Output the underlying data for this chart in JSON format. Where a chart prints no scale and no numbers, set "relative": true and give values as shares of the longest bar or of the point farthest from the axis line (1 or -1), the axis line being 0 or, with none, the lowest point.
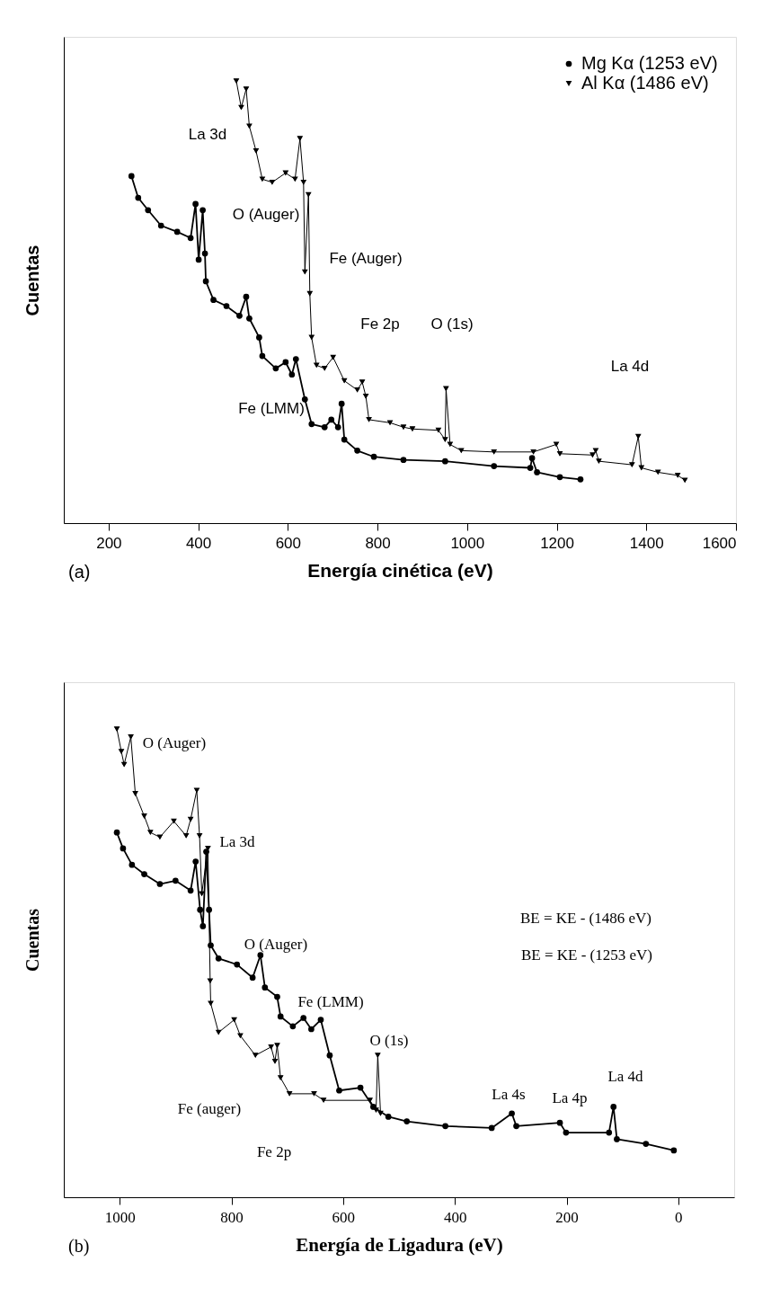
{
  "chart_data": [
    {
      "type": "line",
      "relative": true,
      "xlabel": "Energía cinética (eV)",
      "ylabel": "Cuentas",
      "xlim": [
        100,
        1600
      ],
      "xticks": [
        200,
        400,
        600,
        800,
        1000,
        1200,
        1400,
        1600
      ],
      "grid": false,
      "legend": "top right",
      "series": [
        {
          "name": "Mg Kα (1253 eV)",
          "color": "#000000",
          "marker": "circle",
          "x": [
            251,
            266,
            288,
            317,
            353,
            383,
            394,
            401,
            410,
            415,
            417,
            434,
            463,
            492,
            507,
            514,
            536,
            543,
            573,
            595,
            609,
            618,
            638,
            653,
            682,
            697,
            712,
            720,
            726,
            755,
            792,
            858,
            951,
            1060,
            1141,
            1145,
            1156,
            1207,
            1253
          ],
          "values": [
            0.785,
            0.736,
            0.708,
            0.673,
            0.659,
            0.645,
            0.722,
            0.596,
            0.708,
            0.61,
            0.547,
            0.505,
            0.491,
            0.469,
            0.512,
            0.463,
            0.42,
            0.378,
            0.35,
            0.364,
            0.336,
            0.371,
            0.28,
            0.224,
            0.217,
            0.234,
            0.217,
            0.27,
            0.189,
            0.164,
            0.15,
            0.143,
            0.14,
            0.129,
            0.125,
            0.147,
            0.115,
            0.104,
            0.099
          ]
        },
        {
          "name": "Al Kα  (1486 eV)",
          "color": "#000000",
          "marker": "triangle",
          "x": [
            485,
            496,
            507,
            514,
            529,
            543,
            565,
            595,
            616,
            627,
            635,
            638,
            646,
            649,
            653,
            664,
            682,
            701,
            726,
            755,
            766,
            774,
            781,
            828,
            858,
            878,
            936,
            951,
            953,
            962,
            987,
            1060,
            1148,
            1199,
            1207,
            1280,
            1287,
            1294,
            1368,
            1382,
            1389,
            1426,
            1470,
            1486
          ],
          "values": [
            1.0,
            0.94,
            0.982,
            0.898,
            0.842,
            0.778,
            0.771,
            0.792,
            0.778,
            0.87,
            0.771,
            0.568,
            0.743,
            0.519,
            0.42,
            0.357,
            0.35,
            0.375,
            0.322,
            0.301,
            0.319,
            0.287,
            0.234,
            0.227,
            0.217,
            0.213,
            0.21,
            0.189,
            0.304,
            0.178,
            0.164,
            0.161,
            0.161,
            0.178,
            0.157,
            0.154,
            0.164,
            0.14,
            0.132,
            0.196,
            0.125,
            0.115,
            0.108,
            0.097
          ]
        }
      ],
      "annotations": [
        "La 3d",
        "O (Auger)",
        "Fe (Auger)",
        "Fe 2p",
        "Fe (LMM)",
        "O (1s)",
        "La 4d",
        "(a)"
      ]
    },
    {
      "type": "line",
      "relative": true,
      "xlabel": "Energía de Ligadura (eV)",
      "ylabel": "Cuentas",
      "xlim": [
        1100,
        -100
      ],
      "xticks": [
        1000,
        800,
        600,
        400,
        200,
        0
      ],
      "grid": false,
      "series": [
        {
          "color": "#000000",
          "marker": "triangle",
          "x": [
            1005,
            997,
            992,
            980,
            972,
            956,
            945,
            928,
            903,
            881,
            873,
            862,
            857,
            853,
            842,
            838,
            837,
            823,
            795,
            784,
            757,
            729,
            722,
            718,
            712,
            696,
            652,
            635,
            552,
            541,
            538,
            533
          ],
          "values": [
            1.0,
            0.952,
            0.924,
            0.983,
            0.862,
            0.814,
            0.779,
            0.769,
            0.803,
            0.772,
            0.807,
            0.869,
            0.772,
            0.648,
            0.745,
            0.462,
            0.414,
            0.352,
            0.379,
            0.345,
            0.303,
            0.321,
            0.29,
            0.324,
            0.255,
            0.221,
            0.221,
            0.207,
            0.207,
            0.186,
            0.303,
            0.179
          ]
        },
        {
          "color": "#000000",
          "marker": "circle",
          "x": [
            1005,
            994,
            978,
            956,
            928,
            900,
            873,
            864,
            856,
            851,
            845,
            840,
            837,
            823,
            790,
            762,
            748,
            740,
            718,
            712,
            690,
            671,
            657,
            640,
            624,
            607,
            569,
            546,
            519,
            486,
            417,
            334,
            298,
            290,
            212,
            201,
            124,
            116,
            110,
            58,
            8
          ],
          "values": [
            0.779,
            0.745,
            0.71,
            0.69,
            0.669,
            0.676,
            0.655,
            0.717,
            0.614,
            0.579,
            0.738,
            0.614,
            0.538,
            0.51,
            0.497,
            0.469,
            0.517,
            0.448,
            0.428,
            0.386,
            0.365,
            0.383,
            0.359,
            0.379,
            0.303,
            0.228,
            0.234,
            0.193,
            0.172,
            0.162,
            0.152,
            0.148,
            0.179,
            0.152,
            0.159,
            0.138,
            0.138,
            0.193,
            0.124,
            0.114,
            0.1
          ]
        }
      ],
      "annotations": [
        "O (Auger)",
        "La 3d",
        "O (Auger)",
        "Fe (LMM)",
        "O (1s)",
        "Fe (auger)",
        "Fe 2p",
        "La 4s",
        "La 4p",
        "La 4d",
        "BE = KE - (1486 eV)",
        "BE = KE - (1253 eV)",
        "(b)"
      ]
    }
  ]
}
